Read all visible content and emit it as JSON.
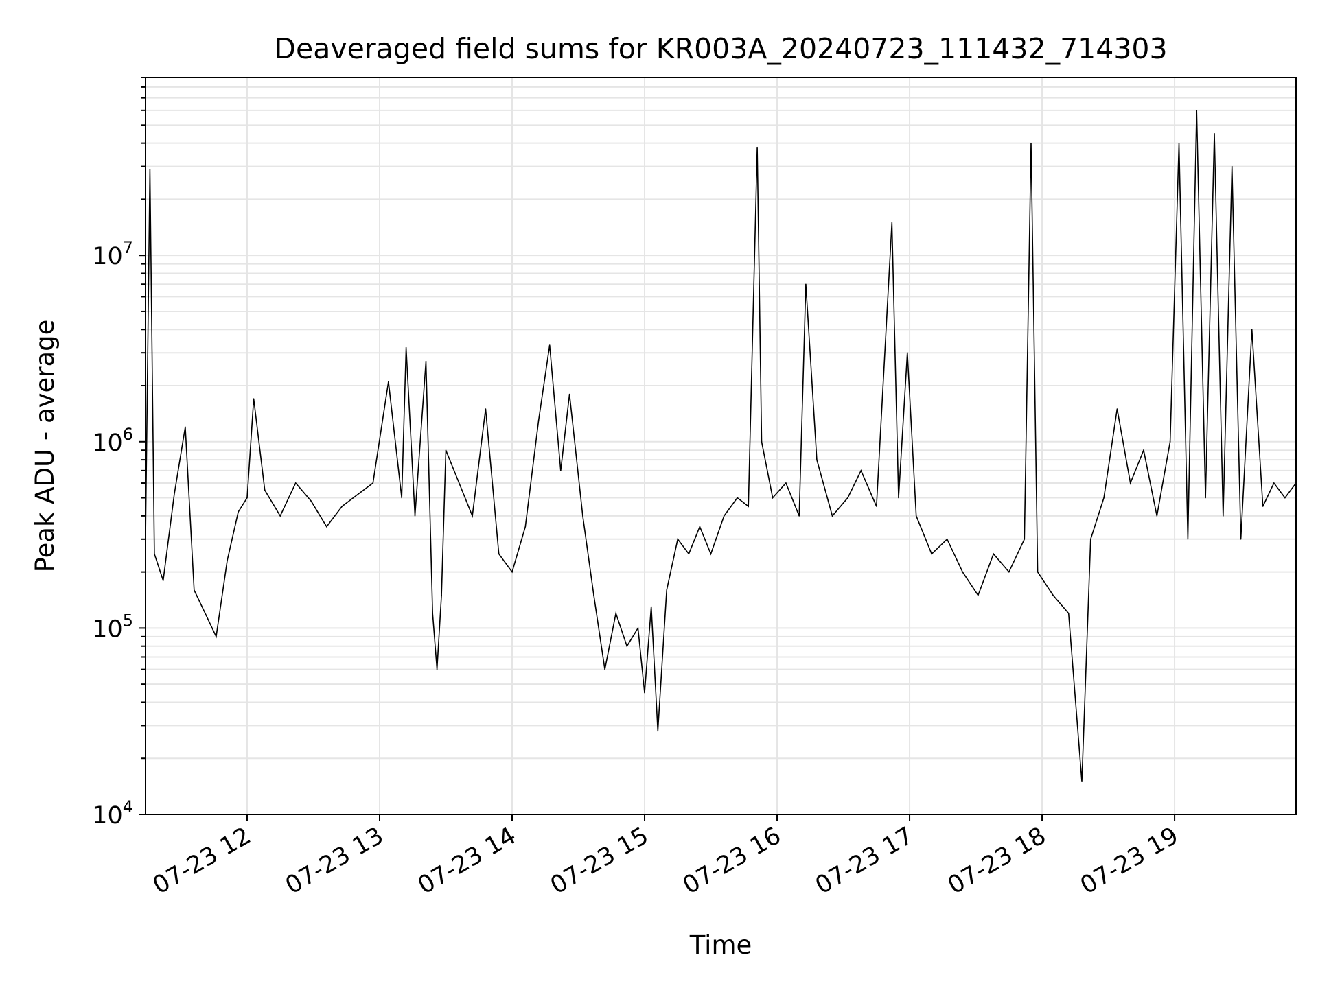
{
  "chart_data": {
    "type": "line",
    "title": "Deaveraged field sums for KR003A_20240723_111432_714303",
    "xlabel": "Time",
    "ylabel": "Peak ADU - average",
    "x_scale": "time",
    "y_scale": "log",
    "xlim": [
      "2024-07-23 11:14",
      "2024-07-23 19:55"
    ],
    "ylim": [
      10000,
      90000000
    ],
    "grid": true,
    "line_color": "#000000",
    "grid_color": "#e5e5e5",
    "x_ticks": [
      {
        "t": "2024-07-23 12:00",
        "label": "07-23 12"
      },
      {
        "t": "2024-07-23 13:00",
        "label": "07-23 13"
      },
      {
        "t": "2024-07-23 14:00",
        "label": "07-23 14"
      },
      {
        "t": "2024-07-23 15:00",
        "label": "07-23 15"
      },
      {
        "t": "2024-07-23 16:00",
        "label": "07-23 16"
      },
      {
        "t": "2024-07-23 17:00",
        "label": "07-23 17"
      },
      {
        "t": "2024-07-23 18:00",
        "label": "07-23 18"
      },
      {
        "t": "2024-07-23 19:00",
        "label": "07-23 19"
      }
    ],
    "y_ticks": [
      {
        "v": 10000,
        "base": "10",
        "exp": "4"
      },
      {
        "v": 100000,
        "base": "10",
        "exp": "5"
      },
      {
        "v": 1000000,
        "base": "10",
        "exp": "6"
      },
      {
        "v": 10000000,
        "base": "10",
        "exp": "7"
      }
    ],
    "series": [
      {
        "points": [
          [
            "2024-07-23 11:14",
            300000
          ],
          [
            "2024-07-23 11:16",
            29000000
          ],
          [
            "2024-07-23 11:18",
            250000
          ],
          [
            "2024-07-23 11:22",
            180000
          ],
          [
            "2024-07-23 11:27",
            520000
          ],
          [
            "2024-07-23 11:32",
            1200000
          ],
          [
            "2024-07-23 11:36",
            160000
          ],
          [
            "2024-07-23 11:41",
            120000
          ],
          [
            "2024-07-23 11:46",
            90000
          ],
          [
            "2024-07-23 11:51",
            230000
          ],
          [
            "2024-07-23 11:56",
            420000
          ],
          [
            "2024-07-23 12:00",
            500000
          ],
          [
            "2024-07-23 12:03",
            1700000
          ],
          [
            "2024-07-23 12:08",
            550000
          ],
          [
            "2024-07-23 12:15",
            400000
          ],
          [
            "2024-07-23 12:22",
            600000
          ],
          [
            "2024-07-23 12:29",
            480000
          ],
          [
            "2024-07-23 12:36",
            350000
          ],
          [
            "2024-07-23 12:43",
            450000
          ],
          [
            "2024-07-23 12:50",
            520000
          ],
          [
            "2024-07-23 12:57",
            600000
          ],
          [
            "2024-07-23 13:04",
            2100000
          ],
          [
            "2024-07-23 13:10",
            500000
          ],
          [
            "2024-07-23 13:12",
            3200000
          ],
          [
            "2024-07-23 13:16",
            400000
          ],
          [
            "2024-07-23 13:21",
            2700000
          ],
          [
            "2024-07-23 13:24",
            120000
          ],
          [
            "2024-07-23 13:26",
            60000
          ],
          [
            "2024-07-23 13:28",
            150000
          ],
          [
            "2024-07-23 13:30",
            900000
          ],
          [
            "2024-07-23 13:36",
            600000
          ],
          [
            "2024-07-23 13:42",
            400000
          ],
          [
            "2024-07-23 13:48",
            1500000
          ],
          [
            "2024-07-23 13:54",
            250000
          ],
          [
            "2024-07-23 14:00",
            200000
          ],
          [
            "2024-07-23 14:06",
            350000
          ],
          [
            "2024-07-23 14:12",
            1300000
          ],
          [
            "2024-07-23 14:17",
            3300000
          ],
          [
            "2024-07-23 14:22",
            700000
          ],
          [
            "2024-07-23 14:26",
            1800000
          ],
          [
            "2024-07-23 14:32",
            400000
          ],
          [
            "2024-07-23 14:37",
            150000
          ],
          [
            "2024-07-23 14:42",
            60000
          ],
          [
            "2024-07-23 14:47",
            120000
          ],
          [
            "2024-07-23 14:52",
            80000
          ],
          [
            "2024-07-23 14:57",
            100000
          ],
          [
            "2024-07-23 15:00",
            45000
          ],
          [
            "2024-07-23 15:03",
            130000
          ],
          [
            "2024-07-23 15:06",
            28000
          ],
          [
            "2024-07-23 15:10",
            160000
          ],
          [
            "2024-07-23 15:15",
            300000
          ],
          [
            "2024-07-23 15:20",
            250000
          ],
          [
            "2024-07-23 15:25",
            350000
          ],
          [
            "2024-07-23 15:30",
            250000
          ],
          [
            "2024-07-23 15:36",
            400000
          ],
          [
            "2024-07-23 15:42",
            500000
          ],
          [
            "2024-07-23 15:47",
            450000
          ],
          [
            "2024-07-23 15:51",
            38000000
          ],
          [
            "2024-07-23 15:53",
            1000000
          ],
          [
            "2024-07-23 15:58",
            500000
          ],
          [
            "2024-07-23 16:04",
            600000
          ],
          [
            "2024-07-23 16:10",
            400000
          ],
          [
            "2024-07-23 16:13",
            7000000
          ],
          [
            "2024-07-23 16:18",
            800000
          ],
          [
            "2024-07-23 16:25",
            400000
          ],
          [
            "2024-07-23 16:32",
            500000
          ],
          [
            "2024-07-23 16:38",
            700000
          ],
          [
            "2024-07-23 16:45",
            450000
          ],
          [
            "2024-07-23 16:52",
            15000000
          ],
          [
            "2024-07-23 16:55",
            500000
          ],
          [
            "2024-07-23 16:59",
            3000000
          ],
          [
            "2024-07-23 17:03",
            400000
          ],
          [
            "2024-07-23 17:10",
            250000
          ],
          [
            "2024-07-23 17:17",
            300000
          ],
          [
            "2024-07-23 17:24",
            200000
          ],
          [
            "2024-07-23 17:31",
            150000
          ],
          [
            "2024-07-23 17:38",
            250000
          ],
          [
            "2024-07-23 17:45",
            200000
          ],
          [
            "2024-07-23 17:52",
            300000
          ],
          [
            "2024-07-23 17:55",
            40000000
          ],
          [
            "2024-07-23 17:58",
            200000
          ],
          [
            "2024-07-23 18:05",
            150000
          ],
          [
            "2024-07-23 18:12",
            120000
          ],
          [
            "2024-07-23 18:18",
            15000
          ],
          [
            "2024-07-23 18:22",
            300000
          ],
          [
            "2024-07-23 18:28",
            500000
          ],
          [
            "2024-07-23 18:34",
            1500000
          ],
          [
            "2024-07-23 18:40",
            600000
          ],
          [
            "2024-07-23 18:46",
            900000
          ],
          [
            "2024-07-23 18:52",
            400000
          ],
          [
            "2024-07-23 18:58",
            1000000
          ],
          [
            "2024-07-23 19:02",
            40000000
          ],
          [
            "2024-07-23 19:06",
            300000
          ],
          [
            "2024-07-23 19:10",
            60000000
          ],
          [
            "2024-07-23 19:14",
            500000
          ],
          [
            "2024-07-23 19:18",
            45000000
          ],
          [
            "2024-07-23 19:22",
            400000
          ],
          [
            "2024-07-23 19:26",
            30000000
          ],
          [
            "2024-07-23 19:30",
            300000
          ],
          [
            "2024-07-23 19:35",
            4000000
          ],
          [
            "2024-07-23 19:40",
            450000
          ],
          [
            "2024-07-23 19:45",
            600000
          ],
          [
            "2024-07-23 19:50",
            500000
          ],
          [
            "2024-07-23 19:55",
            600000
          ]
        ]
      }
    ]
  }
}
